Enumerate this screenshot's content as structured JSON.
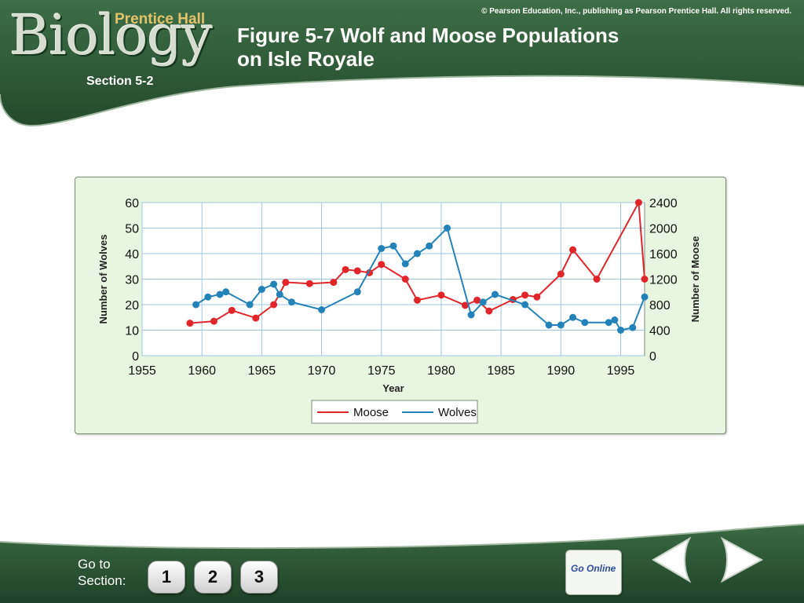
{
  "header": {
    "logo_text": "Biology",
    "logo_publisher": "Prentice Hall",
    "copyright": "© Pearson Education, Inc., publishing as Pearson Prentice Hall. All rights reserved.",
    "title_line1": "Figure 5-7 Wolf and Moose Populations",
    "title_line2": "on Isle Royale",
    "section": "Section 5-2"
  },
  "footer": {
    "goto_line1": "Go to",
    "goto_line2": "Section:",
    "section_buttons": [
      "1",
      "2",
      "3"
    ],
    "go_online": "Go Online",
    "prev_icon": "left-arrow-icon",
    "next_icon": "right-arrow-icon"
  },
  "colors": {
    "banner_green": "#2f5b3a",
    "panel_bg": "#e8f5e1",
    "moose": "#e0262a",
    "wolves": "#2383b9",
    "grid": "#9cc6e4"
  },
  "chart_data": {
    "type": "line",
    "title": "",
    "xlabel": "Year",
    "ylabel_left": "Number of Wolves",
    "ylabel_right": "Number of Moose",
    "xlim": [
      1955,
      1997
    ],
    "ylim_left": [
      0,
      60
    ],
    "ylim_right": [
      0,
      2400
    ],
    "x_ticks": [
      1955,
      1960,
      1965,
      1970,
      1975,
      1980,
      1985,
      1990,
      1995
    ],
    "y_ticks_left": [
      0,
      10,
      20,
      30,
      40,
      50,
      60
    ],
    "y_ticks_right": [
      0,
      400,
      800,
      1200,
      1600,
      2000,
      2400
    ],
    "grid": true,
    "legend_position": "bottom-center",
    "series": [
      {
        "name": "Moose",
        "axis": "right",
        "color": "#e0262a",
        "x": [
          1959,
          1961,
          1962.5,
          1964.5,
          1966,
          1967,
          1969,
          1971,
          1972,
          1973,
          1974,
          1975,
          1977,
          1978,
          1980,
          1982,
          1983,
          1984,
          1986,
          1987,
          1988,
          1990,
          1991,
          1993,
          1996.5,
          1997
        ],
        "y": [
          510,
          540,
          710,
          590,
          800,
          1150,
          1130,
          1150,
          1350,
          1330,
          1300,
          1430,
          1200,
          870,
          950,
          790,
          870,
          700,
          880,
          950,
          920,
          1280,
          1660,
          1200,
          2400,
          1200
        ]
      },
      {
        "name": "Wolves",
        "axis": "left",
        "color": "#2383b9",
        "x": [
          1959.5,
          1960.5,
          1961.5,
          1962,
          1964,
          1965,
          1966,
          1966.5,
          1967.5,
          1970,
          1973,
          1975,
          1976,
          1977,
          1978,
          1979,
          1980.5,
          1982.5,
          1983.5,
          1984.5,
          1987,
          1989,
          1990,
          1991,
          1992,
          1994,
          1994.5,
          1995,
          1996,
          1997
        ],
        "y": [
          20,
          23,
          24,
          25,
          20,
          26,
          28,
          24,
          21,
          18,
          25,
          42,
          43,
          36,
          40,
          43,
          50,
          16,
          21,
          24,
          20,
          12,
          12,
          15,
          13,
          13,
          14,
          10,
          11,
          23
        ]
      }
    ]
  }
}
